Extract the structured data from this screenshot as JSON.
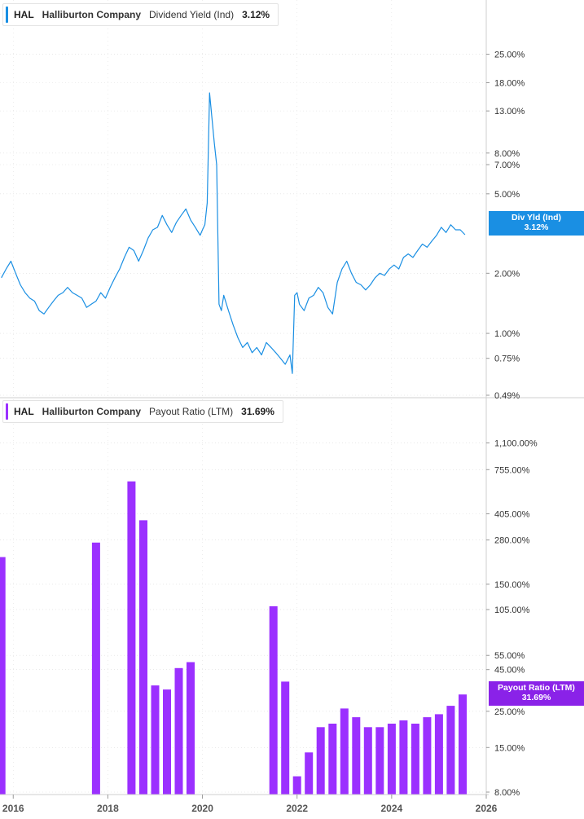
{
  "chart_data": [
    {
      "type": "line",
      "ticker": "HAL",
      "company": "Halliburton Company",
      "metric": "Dividend Yield (Ind)",
      "latest_value": "3.12%",
      "flag_label": "Div Yld (Ind)",
      "flag_value": "3.12%",
      "color": "#1a8fe3",
      "yscale": "log",
      "ylim": [
        0.49,
        33
      ],
      "y_ticks": [
        {
          "v": 25,
          "label": "25.00%"
        },
        {
          "v": 18,
          "label": "18.00%"
        },
        {
          "v": 13,
          "label": "13.00%"
        },
        {
          "v": 8,
          "label": "8.00%"
        },
        {
          "v": 7,
          "label": "7.00%"
        },
        {
          "v": 5,
          "label": "5.00%"
        },
        {
          "v": 2,
          "label": "2.00%"
        },
        {
          "v": 1,
          "label": "1.00%"
        },
        {
          "v": 0.75,
          "label": "0.75%"
        },
        {
          "v": 0.49,
          "label": "0.49%"
        }
      ],
      "series": [
        {
          "x": [
            2015.75,
            2015.85,
            2015.95,
            2016.05,
            2016.15,
            2016.25,
            2016.35,
            2016.45,
            2016.55,
            2016.65,
            2016.75,
            2016.85,
            2016.95,
            2017.05,
            2017.15,
            2017.25,
            2017.35,
            2017.45,
            2017.55,
            2017.65,
            2017.75,
            2017.85,
            2017.95,
            2018.05,
            2018.15,
            2018.25,
            2018.35,
            2018.45,
            2018.55,
            2018.65,
            2018.75,
            2018.85,
            2018.95,
            2019.05,
            2019.15,
            2019.25,
            2019.35,
            2019.45,
            2019.55,
            2019.65,
            2019.75,
            2019.85,
            2019.95,
            2020.0,
            2020.05,
            2020.1,
            2020.15,
            2020.2,
            2020.25,
            2020.3,
            2020.35,
            2020.4,
            2020.45,
            2020.55,
            2020.65,
            2020.75,
            2020.85,
            2020.95,
            2021.05,
            2021.15,
            2021.25,
            2021.35,
            2021.45,
            2021.55,
            2021.65,
            2021.75,
            2021.85,
            2021.9,
            2021.95,
            2022.0,
            2022.05,
            2022.15,
            2022.25,
            2022.35,
            2022.45,
            2022.55,
            2022.65,
            2022.75,
            2022.85,
            2022.95,
            2023.05,
            2023.15,
            2023.25,
            2023.35,
            2023.45,
            2023.55,
            2023.65,
            2023.75,
            2023.85,
            2023.95,
            2024.05,
            2024.15,
            2024.25,
            2024.35,
            2024.45,
            2024.55,
            2024.65,
            2024.75,
            2024.85,
            2024.95,
            2025.05,
            2025.15,
            2025.25,
            2025.35,
            2025.45,
            2025.55
          ],
          "y": [
            1.9,
            2.1,
            2.3,
            2.0,
            1.75,
            1.6,
            1.5,
            1.45,
            1.3,
            1.25,
            1.35,
            1.45,
            1.55,
            1.6,
            1.7,
            1.6,
            1.55,
            1.5,
            1.35,
            1.4,
            1.45,
            1.6,
            1.5,
            1.7,
            1.9,
            2.1,
            2.4,
            2.7,
            2.6,
            2.3,
            2.6,
            3.0,
            3.3,
            3.4,
            3.9,
            3.5,
            3.2,
            3.6,
            3.9,
            4.2,
            3.7,
            3.4,
            3.1,
            3.3,
            3.5,
            4.5,
            16.0,
            12.0,
            9.0,
            7.0,
            1.4,
            1.3,
            1.55,
            1.3,
            1.1,
            0.95,
            0.85,
            0.9,
            0.8,
            0.85,
            0.78,
            0.9,
            0.85,
            0.8,
            0.75,
            0.7,
            0.78,
            0.63,
            1.55,
            1.6,
            1.4,
            1.3,
            1.5,
            1.55,
            1.7,
            1.6,
            1.35,
            1.25,
            1.8,
            2.1,
            2.3,
            2.0,
            1.8,
            1.75,
            1.65,
            1.75,
            1.9,
            2.0,
            1.95,
            2.1,
            2.2,
            2.1,
            2.4,
            2.5,
            2.4,
            2.6,
            2.8,
            2.7,
            2.9,
            3.1,
            3.4,
            3.2,
            3.5,
            3.3,
            3.3,
            3.12
          ]
        }
      ]
    },
    {
      "type": "bar",
      "ticker": "HAL",
      "company": "Halliburton Company",
      "metric": "Payout Ratio (LTM)",
      "latest_value": "31.69%",
      "flag_label": "Payout Ratio (LTM)",
      "flag_value": "31.69%",
      "color": "#9b30ff",
      "yscale": "log",
      "ylim": [
        8,
        1300
      ],
      "y_ticks": [
        {
          "v": 1100,
          "label": "1,100.00%"
        },
        {
          "v": 755,
          "label": "755.00%"
        },
        {
          "v": 405,
          "label": "405.00%"
        },
        {
          "v": 280,
          "label": "280.00%"
        },
        {
          "v": 150,
          "label": "150.00%"
        },
        {
          "v": 105,
          "label": "105.00%"
        },
        {
          "v": 55,
          "label": "55.00%"
        },
        {
          "v": 45,
          "label": "45.00%"
        },
        {
          "v": 25,
          "label": "25.00%"
        },
        {
          "v": 15,
          "label": "15.00%"
        },
        {
          "v": 8,
          "label": "8.00%"
        }
      ],
      "bars": {
        "x": [
          2015.75,
          2017.75,
          2018.5,
          2018.75,
          2019.0,
          2019.25,
          2019.5,
          2019.75,
          2021.5,
          2021.75,
          2022.0,
          2022.25,
          2022.5,
          2022.75,
          2023.0,
          2023.25,
          2023.5,
          2023.75,
          2024.0,
          2024.25,
          2024.5,
          2024.75,
          2025.0,
          2025.25,
          2025.5
        ],
        "y": [
          220,
          270,
          640,
          370,
          36,
          34,
          46,
          50,
          110,
          38,
          10,
          14,
          20,
          21,
          26,
          23,
          20,
          20,
          21,
          22,
          21,
          23,
          24,
          27,
          31.69
        ]
      }
    }
  ],
  "x_axis": {
    "ticks": [
      {
        "v": 2016,
        "label": "2016"
      },
      {
        "v": 2018,
        "label": "2018"
      },
      {
        "v": 2020,
        "label": "2020"
      },
      {
        "v": 2022,
        "label": "2022"
      },
      {
        "v": 2024,
        "label": "2024"
      },
      {
        "v": 2026,
        "label": "2026"
      }
    ]
  },
  "colors": {
    "grid": "#dcdcdc",
    "axis_text": "#333333"
  }
}
